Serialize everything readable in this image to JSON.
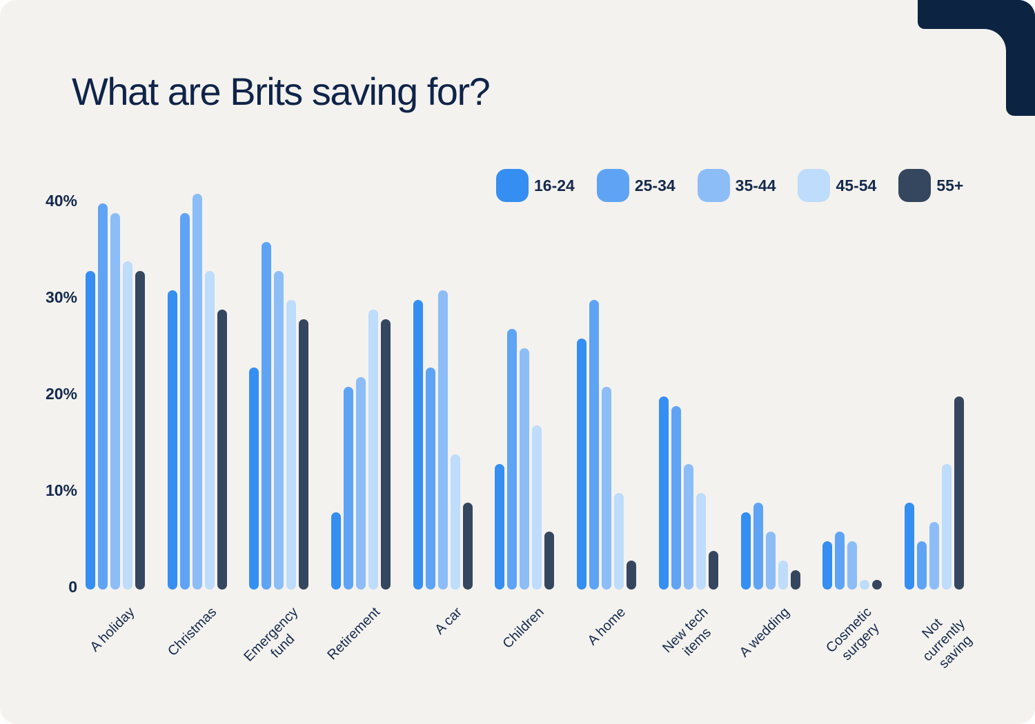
{
  "card": {
    "background_color": "#f4f2ee",
    "corner_accent_color": "#0d2342",
    "text_color": "#14294d",
    "title_color": "#0f2449"
  },
  "chart_data": {
    "type": "bar",
    "title": "What are Brits saving for?",
    "unit": "percent",
    "grid": false,
    "legend_position": "top-right",
    "ylim": [
      0,
      42
    ],
    "y_ticks": [
      {
        "label": "40%",
        "value": 40
      },
      {
        "label": "30%",
        "value": 30
      },
      {
        "label": "20%",
        "value": 20
      },
      {
        "label": "10%",
        "value": 10
      },
      {
        "label": "0",
        "value": 0
      }
    ],
    "categories": [
      "A holiday",
      "Christmas",
      "Emergency\nfund",
      "Retirement",
      "A car",
      "Children",
      "A home",
      "New tech\nitems",
      "A wedding",
      "Cosmetic\nsurgery",
      "Not\ncurrently\nsaving"
    ],
    "series": [
      {
        "name": "16-24",
        "color": "#358ef2",
        "values": [
          33,
          31,
          23,
          8,
          30,
          13,
          26,
          20,
          8,
          5,
          9
        ]
      },
      {
        "name": "25-34",
        "color": "#5fa4f4",
        "values": [
          40,
          39,
          36,
          21,
          23,
          27,
          30,
          19,
          9,
          6,
          5
        ]
      },
      {
        "name": "35-44",
        "color": "#8cbdf7",
        "values": [
          39,
          41,
          33,
          22,
          31,
          25,
          21,
          13,
          6,
          5,
          7
        ]
      },
      {
        "name": "45-54",
        "color": "#bedcfb",
        "values": [
          34,
          33,
          30,
          29,
          14,
          17,
          10,
          10,
          3,
          1,
          13
        ]
      },
      {
        "name": "55+",
        "color": "#35465f",
        "values": [
          33,
          29,
          28,
          28,
          9,
          6,
          3,
          4,
          2,
          1,
          20
        ]
      }
    ]
  }
}
